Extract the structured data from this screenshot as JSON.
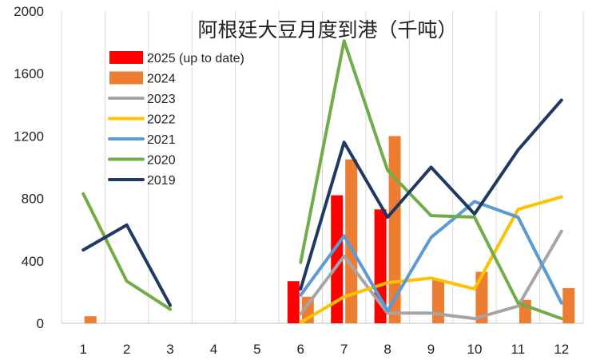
{
  "chart_data": {
    "type": "bar",
    "title": "阿根廷大豆月度到港（千吨）",
    "xlabel": "",
    "ylabel": "",
    "categories": [
      "1",
      "2",
      "3",
      "4",
      "5",
      "6",
      "7",
      "8",
      "9",
      "10",
      "11",
      "12"
    ],
    "ylim": [
      0,
      2000
    ],
    "yticks": [
      "0",
      "400",
      "800",
      "1200",
      "1600",
      "2000"
    ],
    "ytick_values": [
      0,
      400,
      800,
      1200,
      1600,
      2000
    ],
    "grid": "vertical",
    "legend_position": "top-left",
    "bar_series": [
      {
        "name": "2025 (up to date)",
        "color": "#ff0000",
        "values": [
          null,
          null,
          null,
          null,
          null,
          270,
          820,
          730,
          null,
          null,
          null,
          null
        ]
      },
      {
        "name": "2024",
        "color": "#ed7d31",
        "values": [
          45,
          null,
          null,
          null,
          null,
          170,
          1050,
          1200,
          280,
          330,
          150,
          225
        ]
      }
    ],
    "line_series": [
      {
        "name": "2023",
        "color": "#a5a5a5",
        "values": [
          null,
          null,
          null,
          null,
          null,
          60,
          430,
          65,
          65,
          30,
          110,
          590
        ]
      },
      {
        "name": "2022",
        "color": "#ffc000",
        "values": [
          null,
          null,
          null,
          null,
          null,
          5,
          170,
          260,
          290,
          220,
          730,
          810
        ]
      },
      {
        "name": "2021",
        "color": "#5b9bd5",
        "values": [
          null,
          null,
          null,
          null,
          null,
          180,
          560,
          80,
          550,
          780,
          680,
          130
        ]
      },
      {
        "name": "2020",
        "color": "#70ad47",
        "values": [
          830,
          270,
          90,
          null,
          null,
          390,
          1810,
          980,
          690,
          680,
          130,
          30
        ]
      },
      {
        "name": "2019",
        "color": "#203864",
        "values": [
          470,
          630,
          115,
          null,
          null,
          220,
          1160,
          680,
          1000,
          700,
          1110,
          1430
        ]
      }
    ]
  }
}
